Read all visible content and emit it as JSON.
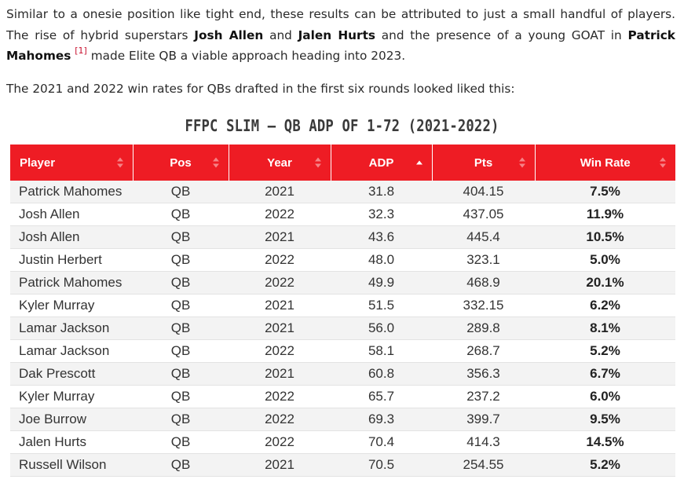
{
  "intro": {
    "t1": "Similar to a onesie position like tight end, these results can be attributed to just a small handful of players. The rise of hybrid superstars ",
    "b1": "Josh Allen",
    "t2": " and ",
    "b2": "Jalen Hurts",
    "t3": " and the presence of a young GOAT in ",
    "b3": "Patrick Mahomes",
    "footnote": "[1]",
    "t4": " made Elite QB a viable approach heading into 2023."
  },
  "lead": "The 2021 and 2022 win rates for QBs drafted in the first six rounds looked liked this:",
  "table": {
    "title": "FFPC SLIM – QB ADP OF 1-72 (2021-2022)",
    "columns": [
      "Player",
      "Pos",
      "Year",
      "ADP",
      "Pts",
      "Win Rate"
    ],
    "sorted_column": "ADP",
    "sort_direction": "ascending",
    "header_color": "#ee1c24",
    "rows": [
      {
        "player": "Patrick Mahomes",
        "pos": "QB",
        "year": "2021",
        "adp": "31.8",
        "pts": "404.15",
        "win": "7.5%"
      },
      {
        "player": "Josh Allen",
        "pos": "QB",
        "year": "2022",
        "adp": "32.3",
        "pts": "437.05",
        "win": "11.9%"
      },
      {
        "player": "Josh Allen",
        "pos": "QB",
        "year": "2021",
        "adp": "43.6",
        "pts": "445.4",
        "win": "10.5%"
      },
      {
        "player": "Justin Herbert",
        "pos": "QB",
        "year": "2022",
        "adp": "48.0",
        "pts": "323.1",
        "win": "5.0%"
      },
      {
        "player": "Patrick Mahomes",
        "pos": "QB",
        "year": "2022",
        "adp": "49.9",
        "pts": "468.9",
        "win": "20.1%"
      },
      {
        "player": "Kyler Murray",
        "pos": "QB",
        "year": "2021",
        "adp": "51.5",
        "pts": "332.15",
        "win": "6.2%"
      },
      {
        "player": "Lamar Jackson",
        "pos": "QB",
        "year": "2021",
        "adp": "56.0",
        "pts": "289.8",
        "win": "8.1%"
      },
      {
        "player": "Lamar Jackson",
        "pos": "QB",
        "year": "2022",
        "adp": "58.1",
        "pts": "268.7",
        "win": "5.2%"
      },
      {
        "player": "Dak Prescott",
        "pos": "QB",
        "year": "2021",
        "adp": "60.8",
        "pts": "356.3",
        "win": "6.7%"
      },
      {
        "player": "Kyler Murray",
        "pos": "QB",
        "year": "2022",
        "adp": "65.7",
        "pts": "237.2",
        "win": "6.0%"
      },
      {
        "player": "Joe Burrow",
        "pos": "QB",
        "year": "2022",
        "adp": "69.3",
        "pts": "399.7",
        "win": "9.5%"
      },
      {
        "player": "Jalen Hurts",
        "pos": "QB",
        "year": "2022",
        "adp": "70.4",
        "pts": "414.3",
        "win": "14.5%"
      },
      {
        "player": "Russell Wilson",
        "pos": "QB",
        "year": "2021",
        "adp": "70.5",
        "pts": "254.55",
        "win": "5.2%"
      }
    ]
  }
}
